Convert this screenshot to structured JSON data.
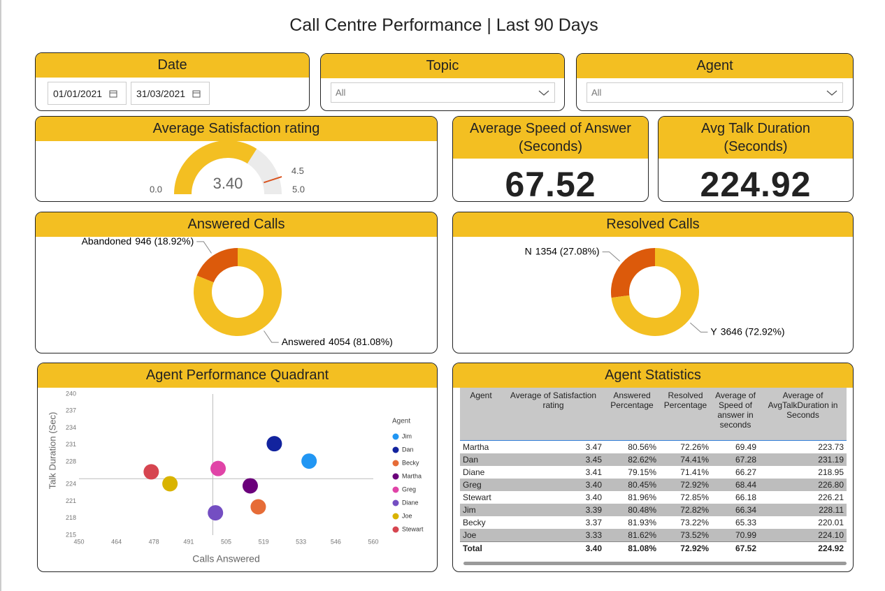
{
  "header": {
    "title": "Call Centre Performance | Last 90 Days"
  },
  "filters": {
    "date": {
      "title": "Date",
      "from": "01/01/2021",
      "to": "31/03/2021"
    },
    "topic": {
      "title": "Topic",
      "value": "All"
    },
    "agent": {
      "title": "Agent",
      "value": "All"
    }
  },
  "kpis": [
    {
      "title": "Average Speed of Answer (Seconds)",
      "value": 67.52
    },
    {
      "title": "Avg Talk Duration (Seconds)",
      "value": 224.92
    }
  ],
  "chart_data": [
    {
      "type": "gauge",
      "title": "Average Satisfaction rating",
      "values": [
        3.4
      ],
      "value_labels": [
        "3.40"
      ],
      "ylim": [
        0,
        5
      ],
      "yticks": [
        {
          "value": 0,
          "label": "0.0"
        },
        {
          "value": 5,
          "label": "5.0"
        }
      ],
      "target": 4.5,
      "color": "#f3bf22",
      "target_color": "#d9531e"
    },
    {
      "type": "pie",
      "title": "Answered Calls",
      "categories": [
        "Abandoned",
        "Answered"
      ],
      "values": [
        946,
        4054
      ],
      "value_labels": [
        "946 (18.92%)",
        "4054 (81.08%)"
      ],
      "colors": [
        "#dc5a0b",
        "#f3bf22"
      ]
    },
    {
      "type": "pie",
      "title": "Resolved Calls",
      "categories": [
        "N",
        "Y"
      ],
      "values": [
        1354,
        3646
      ],
      "value_labels": [
        "1354 (27.08%)",
        "3646 (72.92%)"
      ],
      "colors": [
        "#dc5a0b",
        "#f3bf22"
      ]
    },
    {
      "type": "scatter",
      "title": "Agent Performance Quadrant",
      "x_label": "Calls Answered",
      "y_label": "Talk Duration (Sec)",
      "legend_title": "Agent",
      "xlim": [
        450,
        560
      ],
      "xticks": [
        450,
        464,
        478,
        491,
        505,
        519,
        533,
        546,
        560
      ],
      "ylim": [
        215,
        240
      ],
      "yticks": [
        215,
        218,
        221,
        224,
        228,
        231,
        234,
        237,
        240
      ],
      "x_reference": 500,
      "y_reference": 225,
      "series": [
        {
          "name": "Jim",
          "color": "#2196f3",
          "x": [
            536
          ],
          "values": [
            228.11
          ]
        },
        {
          "name": "Dan",
          "color": "#12239e",
          "x": [
            523
          ],
          "values": [
            231.19
          ]
        },
        {
          "name": "Becky",
          "color": "#e66c37",
          "x": [
            517
          ],
          "values": [
            220.01
          ]
        },
        {
          "name": "Martha",
          "color": "#6b007b",
          "x": [
            514
          ],
          "values": [
            223.73
          ]
        },
        {
          "name": "Greg",
          "color": "#e044a7",
          "x": [
            502
          ],
          "values": [
            226.8
          ]
        },
        {
          "name": "Diane",
          "color": "#744ec2",
          "x": [
            501
          ],
          "values": [
            218.95
          ]
        },
        {
          "name": "Joe",
          "color": "#d9b300",
          "x": [
            484
          ],
          "values": [
            224.1
          ]
        },
        {
          "name": "Stewart",
          "color": "#d64550",
          "x": [
            477
          ],
          "values": [
            226.21
          ]
        }
      ]
    }
  ],
  "table": {
    "title": "Agent Statistics",
    "columns": [
      "Agent",
      "Average of Satisfaction rating",
      "Answered Percentage",
      "Resolved Percentage",
      "Average of Speed of answer in seconds",
      "Average of AvgTalkDuration in Seconds"
    ],
    "rows": [
      [
        "Martha",
        "3.47",
        "80.56%",
        "72.26%",
        "69.49",
        "223.73"
      ],
      [
        "Dan",
        "3.45",
        "82.62%",
        "74.41%",
        "67.28",
        "231.19"
      ],
      [
        "Diane",
        "3.41",
        "79.15%",
        "71.41%",
        "66.27",
        "218.95"
      ],
      [
        "Greg",
        "3.40",
        "80.45%",
        "72.92%",
        "68.44",
        "226.80"
      ],
      [
        "Stewart",
        "3.40",
        "81.96%",
        "72.85%",
        "66.18",
        "226.21"
      ],
      [
        "Jim",
        "3.39",
        "80.48%",
        "72.82%",
        "66.34",
        "228.11"
      ],
      [
        "Becky",
        "3.37",
        "81.93%",
        "73.22%",
        "65.33",
        "220.01"
      ],
      [
        "Joe",
        "3.33",
        "81.62%",
        "73.52%",
        "70.99",
        "224.10"
      ]
    ],
    "total": [
      "Total",
      "3.40",
      "81.08%",
      "72.92%",
      "67.52",
      "224.92"
    ]
  }
}
